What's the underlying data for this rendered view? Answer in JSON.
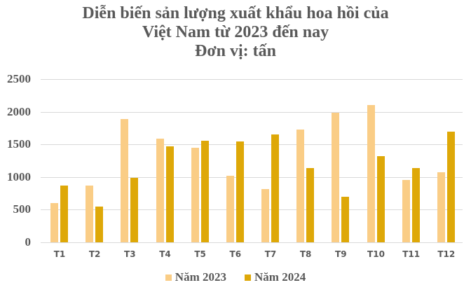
{
  "title": {
    "line1": "Diễn biến sản lượng xuất khẩu hoa hồi của",
    "line2": "Việt Nam từ 2023 đến nay",
    "line3": "Đơn vị: tấn"
  },
  "colors": {
    "series_2023": "#FACD86",
    "series_2024": "#DEA808",
    "grid": "#D9D9D9",
    "text": "#595959"
  },
  "legend": [
    {
      "label": "Năm 2023",
      "color": "#FACD86"
    },
    {
      "label": "Năm 2024",
      "color": "#DEA808"
    }
  ],
  "y_ticks": [
    "0",
    "500",
    "1000",
    "1500",
    "2000",
    "2500"
  ],
  "chart_data": {
    "type": "bar",
    "title": "Diễn biến sản lượng xuất khẩu hoa hồi của Việt Nam từ 2023 đến nay - Đơn vị: tấn",
    "xlabel": "",
    "ylabel": "",
    "ylim": [
      0,
      2500
    ],
    "grid": true,
    "legend_position": "bottom",
    "categories": [
      "T1",
      "T2",
      "T3",
      "T4",
      "T5",
      "T6",
      "T7",
      "T8",
      "T9",
      "T10",
      "T11",
      "T12"
    ],
    "series": [
      {
        "name": "Năm 2023",
        "color": "#FACD86",
        "values": [
          600,
          870,
          1890,
          1590,
          1450,
          1020,
          820,
          1730,
          1985,
          2100,
          960,
          1075
        ]
      },
      {
        "name": "Năm 2024",
        "color": "#DEA808",
        "values": [
          870,
          550,
          990,
          1470,
          1560,
          1545,
          1650,
          1140,
          700,
          1320,
          1140,
          1700
        ]
      }
    ]
  }
}
